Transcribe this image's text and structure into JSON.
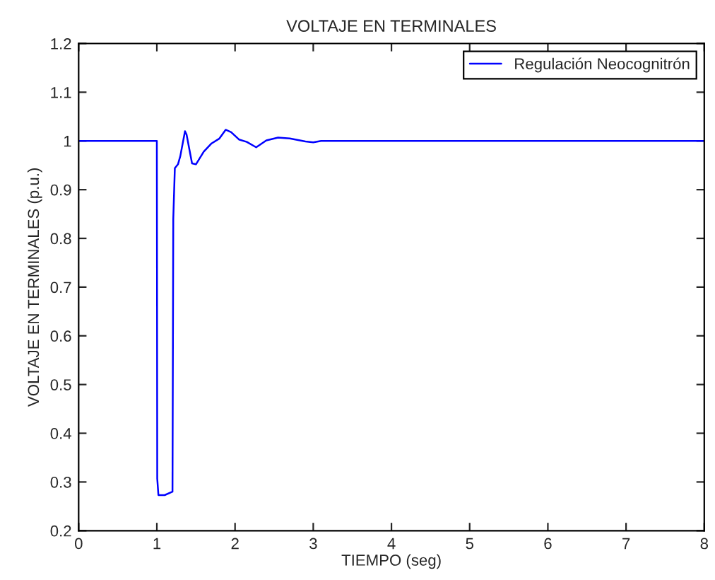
{
  "chart_data": {
    "type": "line",
    "title": "VOLTAJE EN TERMINALES",
    "xlabel": "TIEMPO (seg)",
    "ylabel": "VOLTAJE EN TERMINALES (p.u.)",
    "series": [
      {
        "name": "Regulación Neocognitrón",
        "color": "#0000ff",
        "x": [
          0,
          1.0,
          1.005,
          1.02,
          1.1,
          1.2,
          1.21,
          1.23,
          1.27,
          1.3,
          1.36,
          1.38,
          1.45,
          1.5,
          1.6,
          1.7,
          1.8,
          1.88,
          1.95,
          2.05,
          2.15,
          2.27,
          2.4,
          2.55,
          2.7,
          2.9,
          3.0,
          3.1,
          8
        ],
        "values": [
          1.0,
          1.0,
          0.307,
          0.273,
          0.273,
          0.28,
          0.84,
          0.944,
          0.952,
          0.969,
          1.02,
          1.013,
          0.954,
          0.952,
          0.978,
          0.995,
          1.005,
          1.023,
          1.018,
          1.003,
          0.998,
          0.987,
          1.001,
          1.007,
          1.005,
          0.999,
          0.997,
          1.0,
          1.0
        ]
      }
    ],
    "xlim": [
      0,
      8
    ],
    "ylim": [
      0.2,
      1.2
    ],
    "xticks": [
      0,
      1,
      2,
      3,
      4,
      5,
      6,
      7,
      8
    ],
    "yticks": [
      0.2,
      0.3,
      0.4,
      0.5,
      0.6,
      0.7,
      0.8,
      0.9,
      1,
      1.1,
      1.2
    ],
    "grid": false,
    "legend": "top right",
    "line_style": "solid",
    "marker": "none"
  }
}
